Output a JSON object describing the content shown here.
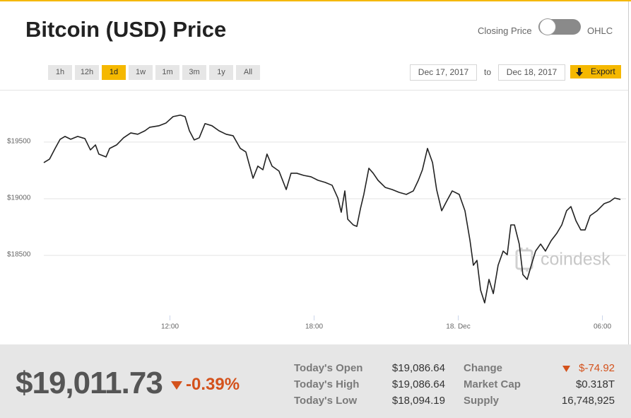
{
  "header": {
    "title": "Bitcoin (USD) Price",
    "toggle_left": "Closing Price",
    "toggle_right": "OHLC"
  },
  "range_buttons": [
    "1h",
    "12h",
    "1d",
    "1w",
    "1m",
    "3m",
    "1y",
    "All"
  ],
  "active_range": "1d",
  "date_range": {
    "from": "Dec 17, 2017",
    "separator": "to",
    "to": "Dec 18, 2017",
    "export": "Export"
  },
  "chart_data": {
    "type": "line",
    "color": "#222222",
    "grid": true,
    "watermark": "coindesk",
    "xlim": [
      6.75,
      30.75
    ],
    "xticks": [
      {
        "value": 12,
        "label": "12:00"
      },
      {
        "value": 18,
        "label": "18:00"
      },
      {
        "value": 24,
        "label": "18. Dec"
      },
      {
        "value": 30,
        "label": "06:00"
      }
    ],
    "ylim": [
      17970,
      19955
    ],
    "yticks": [
      {
        "value": 19500,
        "label": "$19500"
      },
      {
        "value": 19000,
        "label": "$19000"
      },
      {
        "value": 18500,
        "label": "$18500"
      }
    ],
    "x": [
      6.75,
      6.99,
      7.22,
      7.43,
      7.63,
      7.87,
      8.16,
      8.46,
      8.69,
      8.9,
      9.04,
      9.34,
      9.49,
      9.78,
      10.07,
      10.37,
      10.66,
      10.96,
      11.16,
      11.54,
      11.84,
      12.13,
      12.43,
      12.63,
      12.81,
      13.01,
      13.22,
      13.46,
      13.75,
      14.04,
      14.34,
      14.63,
      14.93,
      15.16,
      15.28,
      15.46,
      15.66,
      15.87,
      16.04,
      16.25,
      16.54,
      16.84,
      17.04,
      17.28,
      17.57,
      17.87,
      18.16,
      18.46,
      18.75,
      18.99,
      19.13,
      19.28,
      19.4,
      19.63,
      19.78,
      19.93,
      20.07,
      20.28,
      20.46,
      20.66,
      20.96,
      21.25,
      21.54,
      21.84,
      22.13,
      22.34,
      22.51,
      22.72,
      22.93,
      23.1,
      23.31,
      23.51,
      23.75,
      24.04,
      24.28,
      24.49,
      24.63,
      24.78,
      24.93,
      25.1,
      25.28,
      25.46,
      25.66,
      25.87,
      26.04,
      26.19,
      26.34,
      26.54,
      26.69,
      26.87,
      27.04,
      27.22,
      27.43,
      27.63,
      27.87,
      28.1,
      28.31,
      28.51,
      28.69,
      28.9,
      29.1,
      29.28,
      29.49,
      29.78,
      30.07,
      30.31,
      30.51,
      30.75
    ],
    "values": [
      19319,
      19350,
      19444,
      19525,
      19550,
      19525,
      19550,
      19531,
      19431,
      19475,
      19394,
      19369,
      19444,
      19475,
      19538,
      19581,
      19569,
      19600,
      19631,
      19644,
      19669,
      19725,
      19738,
      19725,
      19600,
      19519,
      19538,
      19663,
      19644,
      19600,
      19569,
      19556,
      19444,
      19413,
      19319,
      19181,
      19288,
      19256,
      19394,
      19288,
      19244,
      19081,
      19225,
      19225,
      19206,
      19194,
      19163,
      19144,
      19119,
      19006,
      18881,
      19069,
      18819,
      18769,
      18756,
      18913,
      19038,
      19269,
      19225,
      19163,
      19100,
      19081,
      19056,
      19038,
      19069,
      19163,
      19256,
      19444,
      19319,
      19081,
      18894,
      18975,
      19069,
      19038,
      18894,
      18631,
      18413,
      18456,
      18194,
      18081,
      18288,
      18163,
      18413,
      18538,
      18506,
      18769,
      18769,
      18600,
      18331,
      18288,
      18413,
      18538,
      18600,
      18538,
      18631,
      18694,
      18769,
      18894,
      18931,
      18806,
      18725,
      18725,
      18850,
      18894,
      18956,
      18975,
      19006,
      18994
    ]
  },
  "summary": {
    "price": "$19,011.73",
    "change_pct": "-0.39%",
    "stats": [
      [
        {
          "label": "Today's Open",
          "value": "$19,086.64"
        },
        {
          "label": "Today's High",
          "value": "$19,086.64"
        },
        {
          "label": "Today's Low",
          "value": "$18,094.19"
        }
      ],
      [
        {
          "label": "Change",
          "value": "$-74.92"
        },
        {
          "label": "Market Cap",
          "value": "$0.318T"
        },
        {
          "label": "Supply",
          "value": "16,748,925"
        }
      ]
    ]
  }
}
